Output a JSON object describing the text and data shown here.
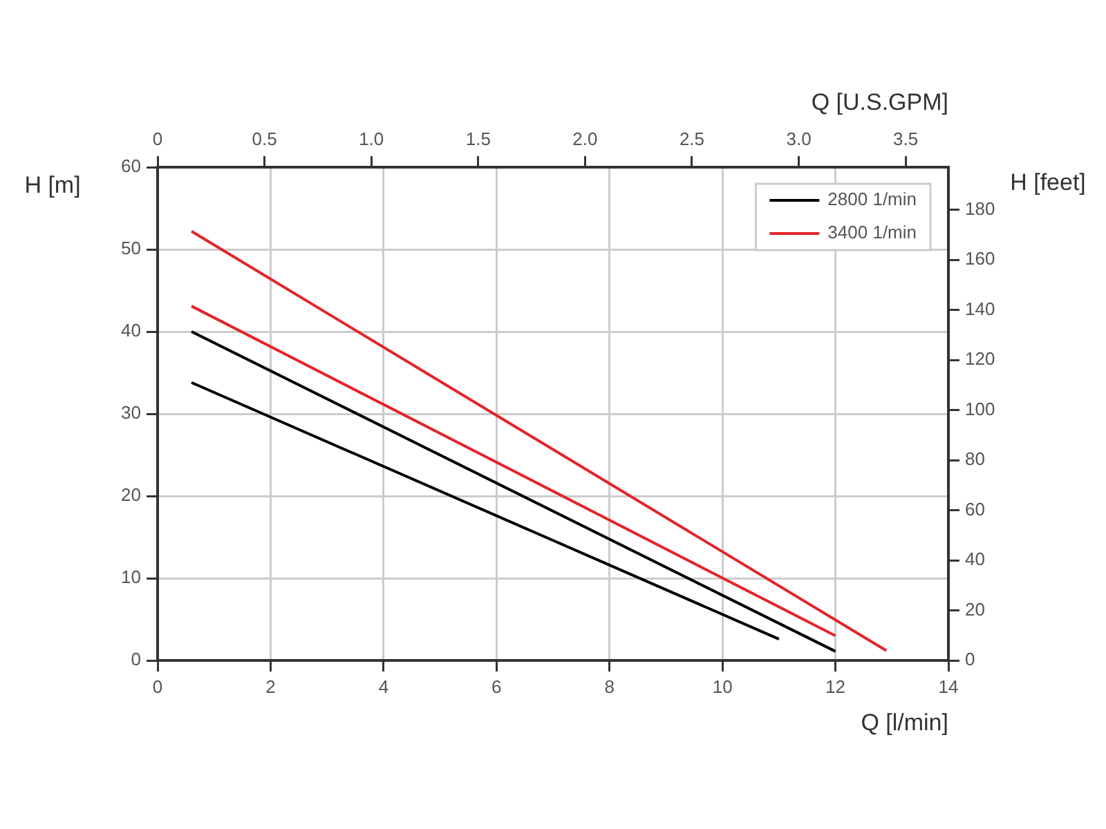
{
  "chart_data": {
    "type": "line",
    "xlabel": "Q [l/min]",
    "x2label": "Q [U.S.GPM]",
    "ylabel": "H [m]",
    "y2label": "H [feet]",
    "xlim": [
      0,
      14
    ],
    "xticks": [
      0,
      2,
      4,
      6,
      8,
      10,
      12,
      14
    ],
    "x2lim": [
      0,
      3.7
    ],
    "x2ticks": [
      0,
      0.5,
      {
        "value": 1,
        "label": "1.0"
      },
      1.5,
      {
        "value": 2,
        "label": "2.0"
      },
      2.5,
      {
        "value": 3,
        "label": "3.0"
      },
      3.5
    ],
    "ylim": [
      0,
      60
    ],
    "yticks": [
      0,
      10,
      20,
      30,
      40,
      50,
      60
    ],
    "y2lim": [
      0,
      197
    ],
    "y2ticks": [
      0,
      20,
      40,
      60,
      80,
      100,
      120,
      140,
      160,
      180
    ],
    "grid": true,
    "legend": "top right",
    "marker": "none",
    "series": [
      {
        "name": "2800 1/min",
        "color": "#000000",
        "x": [
          0.6,
          11.0
        ],
        "values": [
          33.8,
          2.6
        ]
      },
      {
        "color": "#000000",
        "x": [
          0.6,
          12.0
        ],
        "values": [
          40.0,
          1.1
        ]
      },
      {
        "name": "3400 1/min",
        "color": "#e3242b",
        "x": [
          0.6,
          12.0
        ],
        "values": [
          43.1,
          3.0
        ]
      },
      {
        "color": "#e3242b",
        "x": [
          0.6,
          12.9
        ],
        "values": [
          52.2,
          1.2
        ]
      }
    ]
  }
}
